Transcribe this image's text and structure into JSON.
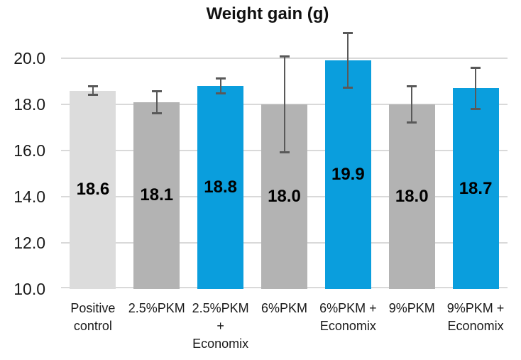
{
  "chart_data": {
    "type": "bar",
    "title": "Weight gain (g)",
    "xlabel": "",
    "ylabel": "",
    "categories": [
      "Positive control",
      "2.5%PKM",
      "2.5%PKM + Economix",
      "6%PKM",
      "6%PKM + Economix",
      "9%PKM",
      "9%PKM + Economix"
    ],
    "category_label_lines": [
      [
        "Positive",
        "control"
      ],
      [
        "2.5%PKM"
      ],
      [
        "2.5%PKM",
        "+",
        "Economix"
      ],
      [
        "6%PKM"
      ],
      [
        "6%PKM +",
        "Economix"
      ],
      [
        "9%PKM"
      ],
      [
        "9%PKM +",
        "Economix"
      ]
    ],
    "values": [
      18.6,
      18.1,
      18.8,
      18.0,
      19.9,
      18.0,
      18.7
    ],
    "value_labels": [
      "18.6",
      "18.1",
      "18.8",
      "18.0",
      "19.9",
      "18.0",
      "18.7"
    ],
    "error_plus": [
      0.2,
      0.5,
      0.35,
      2.1,
      1.2,
      0.8,
      0.9
    ],
    "error_minus": [
      0.2,
      0.5,
      0.35,
      2.1,
      1.2,
      0.8,
      0.9
    ],
    "bar_colors": [
      "#dcdcdc",
      "#b3b3b3",
      "#0a9edd",
      "#b3b3b3",
      "#0a9edd",
      "#b3b3b3",
      "#0a9edd"
    ],
    "y_ticks": [
      "20.0",
      "18.0",
      "16.0",
      "14.0",
      "12.0",
      "10.0"
    ],
    "y_tick_values": [
      20,
      18,
      16,
      14,
      12,
      10
    ],
    "ylim": [
      10,
      21.5
    ],
    "grid": true,
    "legend": false,
    "colors": {
      "control_bar": "#dcdcdc",
      "pkm_bar": "#b3b3b3",
      "economix_bar": "#0a9edd",
      "gridline": "#d9d9d9",
      "error_bar": "#595959",
      "text": "#1a1a1a"
    }
  }
}
